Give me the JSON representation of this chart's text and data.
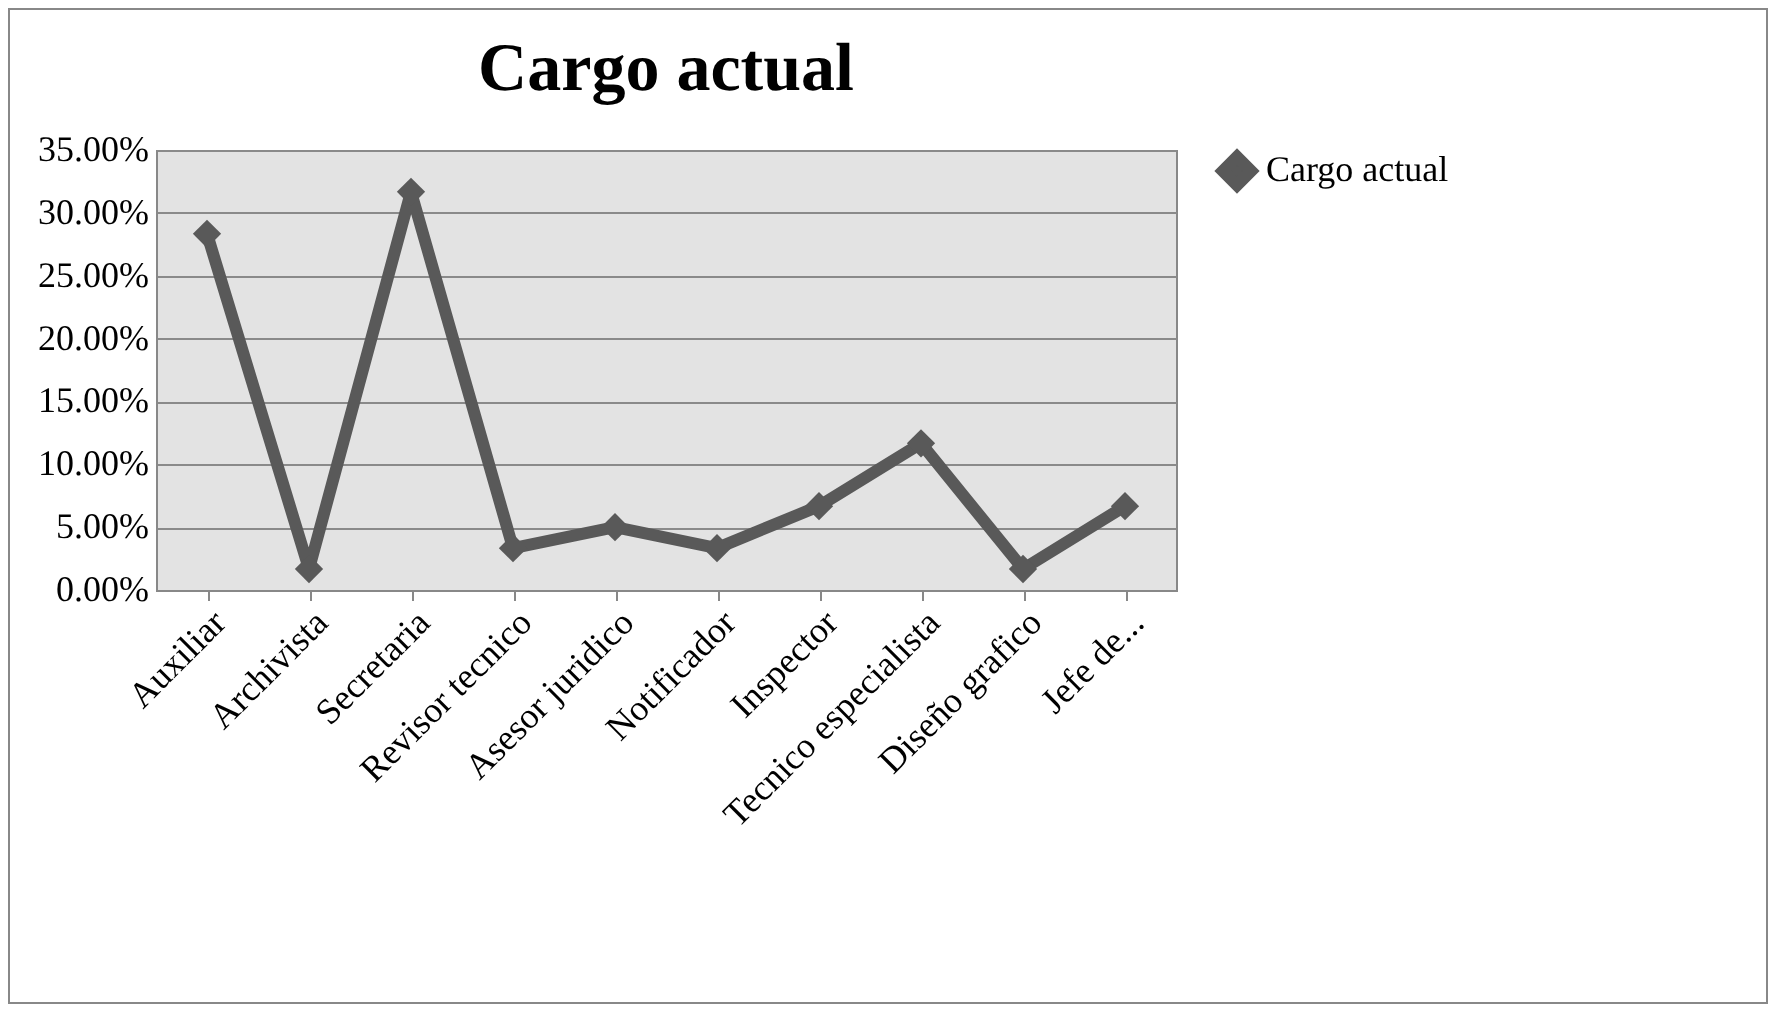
{
  "chart_data": {
    "type": "line",
    "title": "Cargo actual",
    "categories": [
      "Auxiliar",
      "Archivista",
      "Secretaria",
      "Revisor tecnico",
      "Asesor juridico",
      "Notificador",
      "Inspector",
      "Tecnico especialista",
      "Diseño grafico",
      "Jefe de..."
    ],
    "series": [
      {
        "name": "Cargo actual",
        "color": "#595959",
        "values": [
          28.33,
          1.67,
          31.67,
          3.33,
          5,
          3.33,
          6.67,
          11.67,
          1.67,
          6.67
        ]
      }
    ],
    "ylim": [
      0,
      35
    ],
    "yticks": [
      {
        "value": 0,
        "label": "0.00%"
      },
      {
        "value": 5,
        "label": "5.00%"
      },
      {
        "value": 10,
        "label": "10.00%"
      },
      {
        "value": 15,
        "label": "15.00%"
      },
      {
        "value": 20,
        "label": "20.00%"
      },
      {
        "value": 25,
        "label": "25.00%"
      },
      {
        "value": 30,
        "label": "30.00%"
      },
      {
        "value": 35,
        "label": "35.00%"
      }
    ],
    "grid": "y",
    "legend": "right",
    "marker": "diamond",
    "line_style": "solid"
  }
}
